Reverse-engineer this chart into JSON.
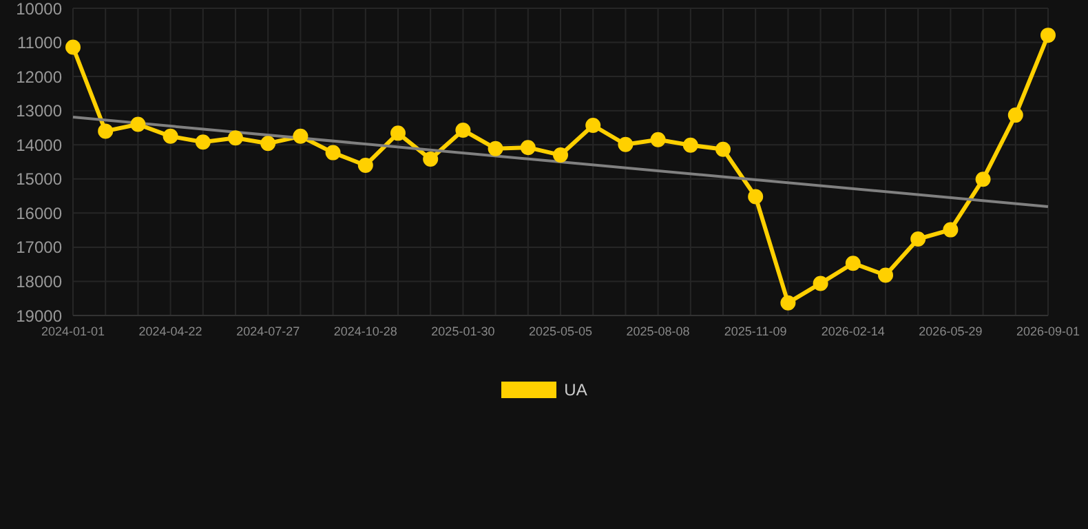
{
  "chart_data": {
    "type": "line",
    "categories": [
      "2024-01-01",
      null,
      null,
      "2024-04-22",
      null,
      null,
      "2024-07-27",
      null,
      null,
      "2024-10-28",
      null,
      null,
      "2025-01-30",
      null,
      null,
      "2025-05-05",
      null,
      null,
      "2025-08-08",
      null,
      null,
      "2025-11-09",
      null,
      null,
      "2026-02-14",
      null,
      null,
      "2026-05-29",
      null,
      null,
      "2026-09-01"
    ],
    "series": [
      {
        "name": "UA",
        "color": "#ffd000",
        "marker": "circle",
        "values": [
          11140,
          13600,
          13400,
          13750,
          13920,
          13800,
          13960,
          13750,
          14230,
          14600,
          13660,
          14420,
          13570,
          14110,
          14080,
          14300,
          13430,
          13990,
          13850,
          14010,
          14130,
          15520,
          18630,
          18060,
          17470,
          17820,
          16760,
          16490,
          15010,
          13130,
          10790
        ]
      },
      {
        "type": "line",
        "color": "#808080",
        "marker": "none",
        "values": [
          13190,
          null,
          null,
          null,
          null,
          null,
          null,
          null,
          null,
          null,
          null,
          null,
          null,
          null,
          null,
          null,
          null,
          null,
          null,
          null,
          null,
          null,
          null,
          null,
          null,
          null,
          null,
          null,
          null,
          null,
          15810
        ]
      }
    ],
    "ylim": [
      19000,
      10000
    ],
    "yticks": [
      10000,
      11000,
      12000,
      13000,
      14000,
      15000,
      16000,
      17000,
      18000,
      19000
    ],
    "grid": true,
    "legend": "bottom",
    "line_style": "solid"
  }
}
